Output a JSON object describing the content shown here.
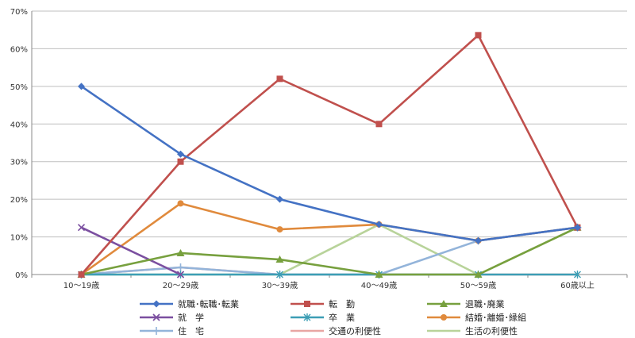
{
  "chart_data": {
    "type": "line",
    "title": "",
    "xlabel": "",
    "ylabel": "",
    "categories": [
      "10～19歳",
      "20～29歳",
      "30～39歳",
      "40～49歳",
      "50～59歳",
      "60歳以上"
    ],
    "y_ticks": [
      "0%",
      "10%",
      "20%",
      "30%",
      "40%",
      "50%",
      "60%",
      "70%"
    ],
    "ylim": [
      0,
      70
    ],
    "grid": true,
    "legend_position": "bottom",
    "series": [
      {
        "name": "就職･転職･転業",
        "color": "#4472C4",
        "marker": "diamond",
        "values": [
          50,
          32,
          20,
          13.3,
          9,
          12.5
        ]
      },
      {
        "name": "転　勤",
        "color": "#C0504D",
        "marker": "square",
        "values": [
          0,
          30,
          52,
          40,
          63.6,
          12.5
        ]
      },
      {
        "name": "退職･廃業",
        "color": "#77A03E",
        "marker": "triangle",
        "values": [
          0,
          5.7,
          4,
          0,
          0,
          12.5
        ]
      },
      {
        "name": "就　学",
        "color": "#7B4FA0",
        "marker": "x",
        "values": [
          12.5,
          0,
          null,
          null,
          null,
          null
        ]
      },
      {
        "name": "卒　業",
        "color": "#3C9EB5",
        "marker": "star",
        "values": [
          0,
          0,
          0,
          0,
          0,
          0
        ]
      },
      {
        "name": "結婚･離婚･縁組",
        "color": "#E08A3C",
        "marker": "circle",
        "values": [
          0,
          18.9,
          12,
          13.3,
          9,
          12.5
        ]
      },
      {
        "name": "住　宅",
        "color": "#93B4DA",
        "marker": "plus",
        "values": [
          0,
          1.9,
          0,
          0,
          9,
          12.5
        ]
      },
      {
        "name": "交通の利便性",
        "color": "#E8A5A3",
        "marker": "none",
        "values": [
          0,
          1.9,
          0,
          0,
          0,
          0
        ]
      },
      {
        "name": "生活の利便性",
        "color": "#B8D39A",
        "marker": "none",
        "values": [
          0,
          0,
          0,
          13.3,
          0,
          12.5
        ]
      }
    ]
  }
}
